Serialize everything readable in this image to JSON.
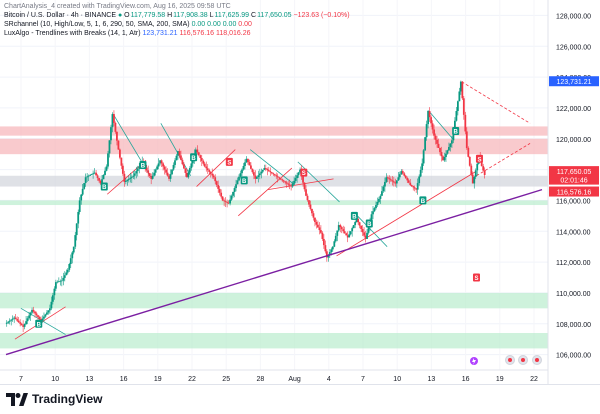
{
  "header": {
    "created_by": "ChartAnalysis_4 created with TradingView.com, Aug 16, 2025 09:58 UTC",
    "symbol": "Bitcoin / U.S. Dollar · 4h · BINANCE",
    "ohlc": {
      "o_label": "O",
      "o": "117,779.58",
      "h_label": "H",
      "h": "117,908.38",
      "l_label": "L",
      "l": "117,625.99",
      "c_label": "C",
      "c": "117,650.05",
      "change": "−123.63 (−0.10%)"
    },
    "indicator1": {
      "name": "SRchannel (10, High/Low, 5, 1, 6, 290, 50, SMA, 200, SMA)",
      "v1": "0.00",
      "v2": "0.00",
      "v3": "0.00",
      "v4": "0.00"
    },
    "indicator2": {
      "name": "LuxAlgo - Trendlines with Breaks (14, 1, Atr)",
      "v1": "123,731.21",
      "v2": "116,576.16",
      "v3": "118,016.26"
    }
  },
  "price_scale": {
    "labels": [
      "128,000.00",
      "126,000.00",
      "124,000.00",
      "122,000.00",
      "120,000.00",
      "118,000.00",
      "116,000.00",
      "114,000.00",
      "112,000.00",
      "110,000.00",
      "108,000.00",
      "106,000.00"
    ],
    "badges": [
      {
        "text": "123,731.21",
        "color": "#2962ff"
      },
      {
        "text": "117,650.05",
        "color": "#f23645"
      },
      {
        "text": "02:01:46",
        "color": "#f23645"
      },
      {
        "text": "116,576.16",
        "color": "#f23645"
      }
    ]
  },
  "time_axis": {
    "labels": [
      "7",
      "10",
      "13",
      "16",
      "19",
      "22",
      "25",
      "28",
      "Aug",
      "4",
      "7",
      "10",
      "13",
      "16",
      "19",
      "22"
    ]
  },
  "brand": {
    "name": "TradingView"
  },
  "colors": {
    "up": "#089981",
    "down": "#f23645",
    "resistance": "#f7b3b8",
    "support": "#b9eccd",
    "trend": "#7b1fa2"
  },
  "chart_data": {
    "type": "candlestick",
    "title": "Bitcoin / U.S. Dollar · 4h · BINANCE",
    "x_labels": [
      "7",
      "10",
      "13",
      "16",
      "19",
      "22",
      "25",
      "28",
      "Aug",
      "4",
      "7",
      "10",
      "13",
      "16",
      "19",
      "22"
    ],
    "ylim": [
      105000,
      129000
    ],
    "y_ticks": [
      106000,
      108000,
      110000,
      112000,
      114000,
      116000,
      118000,
      120000,
      122000,
      124000,
      126000,
      128000
    ],
    "last_price": 117650.05,
    "resistance_zones": [
      [
        119000,
        120000
      ],
      [
        120200,
        120800
      ]
    ],
    "neutral_zone": [
      116900,
      117600
    ],
    "support_zones": [
      [
        115700,
        116000
      ],
      [
        109000,
        110000
      ],
      [
        106400,
        107400
      ]
    ],
    "path_points": [
      [
        0,
        108000
      ],
      [
        3,
        108400
      ],
      [
        6,
        107800
      ],
      [
        9,
        108900
      ],
      [
        12,
        108200
      ],
      [
        15,
        109000
      ],
      [
        17,
        110700
      ],
      [
        19,
        110800
      ],
      [
        21,
        111500
      ],
      [
        23,
        113000
      ],
      [
        25,
        116000
      ],
      [
        27,
        117500
      ],
      [
        30,
        117800
      ],
      [
        32,
        117100
      ],
      [
        34,
        118200
      ],
      [
        36,
        121600
      ],
      [
        38,
        119300
      ],
      [
        40,
        117200
      ],
      [
        43,
        117600
      ],
      [
        46,
        118500
      ],
      [
        49,
        117400
      ],
      [
        52,
        118600
      ],
      [
        55,
        117400
      ],
      [
        58,
        119200
      ],
      [
        61,
        117500
      ],
      [
        64,
        119300
      ],
      [
        67,
        118200
      ],
      [
        70,
        117500
      ],
      [
        73,
        116000
      ],
      [
        75,
        115800
      ],
      [
        78,
        117300
      ],
      [
        81,
        118700
      ],
      [
        84,
        117400
      ],
      [
        87,
        118100
      ],
      [
        90,
        117700
      ],
      [
        93,
        117300
      ],
      [
        96,
        116900
      ],
      [
        99,
        118000
      ],
      [
        101,
        116300
      ],
      [
        104,
        114600
      ],
      [
        106,
        113900
      ],
      [
        108,
        112300
      ],
      [
        110,
        113000
      ],
      [
        112,
        114400
      ],
      [
        115,
        113600
      ],
      [
        118,
        114800
      ],
      [
        121,
        113500
      ],
      [
        123,
        115100
      ],
      [
        126,
        116300
      ],
      [
        128,
        117500
      ],
      [
        131,
        117100
      ],
      [
        133,
        117900
      ],
      [
        136,
        117000
      ],
      [
        138,
        116700
      ],
      [
        140,
        118400
      ],
      [
        142,
        121800
      ],
      [
        144,
        120200
      ],
      [
        147,
        118600
      ],
      [
        150,
        119900
      ],
      [
        153,
        123700
      ],
      [
        155,
        119400
      ],
      [
        157,
        117100
      ],
      [
        159,
        118800
      ],
      [
        161,
        117650
      ]
    ],
    "trendline": {
      "from": [
        0,
        106000
      ],
      "to": [
        180,
        116700
      ]
    },
    "markers": [
      {
        "type": "B",
        "x": 11,
        "y": 108000
      },
      {
        "type": "B",
        "x": 46,
        "y": 118300
      },
      {
        "type": "B",
        "x": 80,
        "y": 117300
      },
      {
        "type": "B",
        "x": 117,
        "y": 115000
      },
      {
        "type": "B",
        "x": 151,
        "y": 120500
      },
      {
        "type": "B",
        "x": 122,
        "y": 114500
      },
      {
        "type": "B",
        "x": 63,
        "y": 118800
      },
      {
        "type": "B",
        "x": 33,
        "y": 116900
      },
      {
        "type": "B",
        "x": 140,
        "y": 116000
      },
      {
        "type": "S",
        "x": 75,
        "y": 118500
      },
      {
        "type": "S",
        "x": 100,
        "y": 117800
      },
      {
        "type": "S",
        "x": 159,
        "y": 118700
      },
      {
        "type": "S",
        "x": 158,
        "y": 111000
      }
    ]
  }
}
